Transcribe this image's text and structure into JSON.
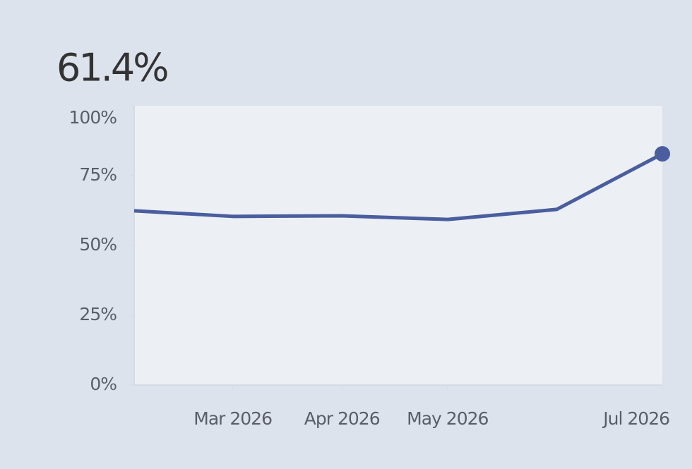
{
  "chart_data": {
    "type": "line",
    "headline": "61.4%",
    "x": [
      "2026-02",
      "2026-03",
      "2026-04",
      "2026-05",
      "2026-06",
      "2026-07"
    ],
    "series": [
      {
        "color": "#4a5d9e",
        "values": [
          62.4,
          60.4,
          60.6,
          59.3,
          62.9,
          82.8
        ]
      }
    ],
    "xlim": [
      "2026-02",
      "2026-07"
    ],
    "xticks": [
      {
        "value": "2026-03",
        "label": "Mar 2026"
      },
      {
        "value": "2026-04",
        "label": "Apr 2026"
      },
      {
        "value": "2026-05",
        "label": "May 2026"
      },
      {
        "value": "2026-07",
        "label": "Jul 2026"
      }
    ],
    "ylim": [
      0,
      100
    ],
    "yticks": [
      {
        "value": 0,
        "label": "0%"
      },
      {
        "value": 25,
        "label": "25%"
      },
      {
        "value": 50,
        "label": "50%"
      },
      {
        "value": 75,
        "label": "75%"
      },
      {
        "value": 100,
        "label": "100%"
      }
    ]
  }
}
